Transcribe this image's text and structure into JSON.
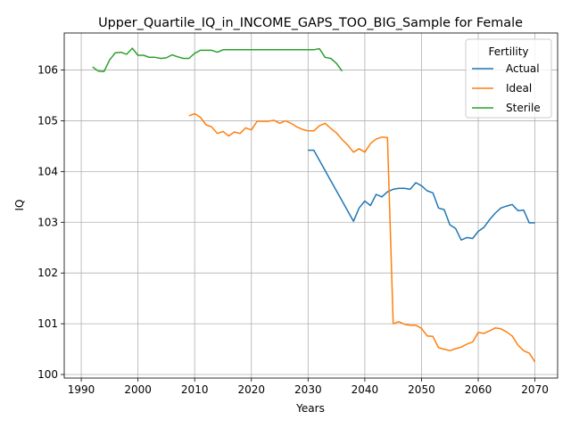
{
  "chart_data": {
    "type": "line",
    "title": "Upper_Quartile_IQ_in_INCOME_GAPS_TOO_BIG_Sample for Female",
    "xlabel": "Years",
    "ylabel": "IQ",
    "xlim": [
      1987,
      2074
    ],
    "ylim": [
      99.93,
      106.73
    ],
    "xticks": [
      1990,
      2000,
      2010,
      2020,
      2030,
      2040,
      2050,
      2060,
      2070
    ],
    "yticks": [
      100,
      101,
      102,
      103,
      104,
      105,
      106
    ],
    "grid": true,
    "legend": {
      "title": "Fertility",
      "placement": "top-right"
    },
    "series": [
      {
        "name": "Actual",
        "color": "#1f77b4",
        "x": [
          2030,
          2031,
          2032,
          2033,
          2034,
          2035,
          2036,
          2037,
          2038,
          2039,
          2040,
          2041,
          2042,
          2043,
          2044,
          2045,
          2046,
          2047,
          2048,
          2049,
          2050,
          2051,
          2052,
          2053,
          2054,
          2055,
          2056,
          2057,
          2058,
          2059,
          2060,
          2061,
          2062,
          2063,
          2064,
          2065,
          2066,
          2067,
          2068,
          2069,
          2070
        ],
        "values": [
          104.42,
          104.42,
          104.22,
          104.02,
          103.82,
          103.62,
          103.42,
          103.22,
          103.02,
          103.28,
          103.42,
          103.33,
          103.55,
          103.5,
          103.6,
          103.65,
          103.67,
          103.67,
          103.65,
          103.78,
          103.72,
          103.62,
          103.58,
          103.28,
          103.25,
          102.95,
          102.88,
          102.65,
          102.7,
          102.68,
          102.82,
          102.9,
          103.05,
          103.18,
          103.28,
          103.32,
          103.35,
          103.23,
          103.24,
          102.99,
          102.99
        ]
      },
      {
        "name": "Ideal",
        "color": "#ff7f0e",
        "x": [
          2009,
          2010,
          2011,
          2012,
          2013,
          2014,
          2015,
          2016,
          2017,
          2018,
          2019,
          2020,
          2021,
          2022,
          2023,
          2024,
          2025,
          2026,
          2027,
          2028,
          2029,
          2030,
          2031,
          2032,
          2033,
          2034,
          2035,
          2036,
          2037,
          2038,
          2039,
          2040,
          2041,
          2042,
          2043,
          2044,
          2045,
          2046,
          2047,
          2048,
          2049,
          2050,
          2051,
          2052,
          2053,
          2054,
          2055,
          2056,
          2057,
          2058,
          2059,
          2060,
          2061,
          2062,
          2063,
          2064,
          2065,
          2066,
          2067,
          2068,
          2069,
          2070
        ],
        "values": [
          105.1,
          105.14,
          105.07,
          104.92,
          104.88,
          104.75,
          104.79,
          104.7,
          104.78,
          104.75,
          104.86,
          104.82,
          104.99,
          104.99,
          104.99,
          105.01,
          104.95,
          105.0,
          104.95,
          104.88,
          104.83,
          104.8,
          104.8,
          104.9,
          104.95,
          104.85,
          104.76,
          104.63,
          104.52,
          104.38,
          104.45,
          104.38,
          104.55,
          104.64,
          104.68,
          104.67,
          101.0,
          101.04,
          100.99,
          100.97,
          100.97,
          100.91,
          100.76,
          100.75,
          100.53,
          100.5,
          100.47,
          100.51,
          100.54,
          100.6,
          100.64,
          100.83,
          100.81,
          100.86,
          100.92,
          100.9,
          100.84,
          100.76,
          100.58,
          100.47,
          100.42,
          100.25
        ]
      },
      {
        "name": "Sterile",
        "color": "#2ca02c",
        "x": [
          1992,
          1993,
          1994,
          1995,
          1996,
          1997,
          1998,
          1999,
          2000,
          2001,
          2002,
          2003,
          2004,
          2005,
          2006,
          2007,
          2008,
          2009,
          2010,
          2011,
          2012,
          2013,
          2014,
          2015,
          2016,
          2017,
          2018,
          2019,
          2020,
          2021,
          2022,
          2023,
          2024,
          2025,
          2026,
          2027,
          2028,
          2029,
          2030,
          2031,
          2032,
          2033,
          2034,
          2035,
          2036
        ],
        "values": [
          106.06,
          105.98,
          105.97,
          106.2,
          106.34,
          106.35,
          106.31,
          106.43,
          106.29,
          106.29,
          106.25,
          106.25,
          106.23,
          106.24,
          106.3,
          106.26,
          106.23,
          106.23,
          106.33,
          106.39,
          106.39,
          106.39,
          106.35,
          106.4,
          106.4,
          106.4,
          106.4,
          106.4,
          106.4,
          106.4,
          106.4,
          106.4,
          106.4,
          106.4,
          106.4,
          106.4,
          106.4,
          106.4,
          106.4,
          106.4,
          106.42,
          106.25,
          106.23,
          106.13,
          105.98
        ]
      }
    ]
  }
}
